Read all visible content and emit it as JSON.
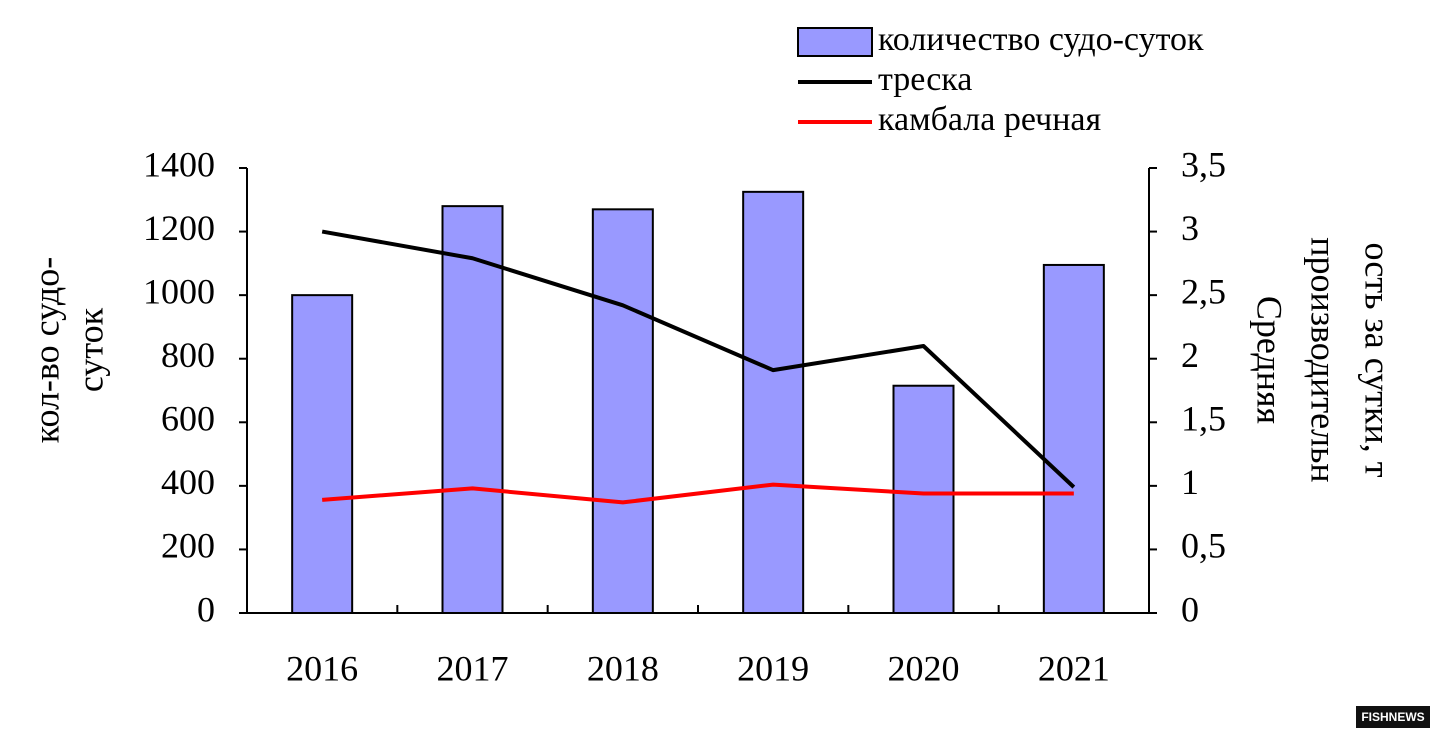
{
  "chart_data": {
    "type": "bar-line",
    "categories": [
      "2016",
      "2017",
      "2018",
      "2019",
      "2020",
      "2021"
    ],
    "ylabel": [
      "кол-во судо-",
      "суток"
    ],
    "y2label": [
      "Средняя",
      "производительн",
      "ость за сутки, т"
    ],
    "ylim": [
      0,
      1400
    ],
    "yticks": [
      0,
      200,
      400,
      600,
      800,
      1000,
      1200,
      1400
    ],
    "y2lim": [
      0,
      3.5
    ],
    "y2ticks": [
      0,
      {
        "value": 0.5,
        "label": "0,5"
      },
      1,
      {
        "value": 1.5,
        "label": "1,5"
      },
      2,
      {
        "value": 2.5,
        "label": "2,5"
      },
      3,
      {
        "value": 3.5,
        "label": "3,5"
      }
    ],
    "series": [
      {
        "name": "количество судо-суток",
        "type": "bar",
        "color": "#9999ff",
        "values": [
          1000,
          1280,
          1270,
          1325,
          715,
          1095
        ]
      },
      {
        "name": "треска",
        "type": "line",
        "axis": "y2",
        "color": "#000000",
        "values": [
          3.0,
          2.79,
          2.42,
          1.91,
          2.1,
          0.99
        ]
      },
      {
        "name": "камбала речная",
        "type": "line",
        "axis": "y2",
        "color": "#ff0000",
        "values": [
          0.89,
          0.98,
          0.87,
          1.01,
          0.94,
          0.94
        ]
      }
    ],
    "watermark": "FISHNEWS"
  }
}
